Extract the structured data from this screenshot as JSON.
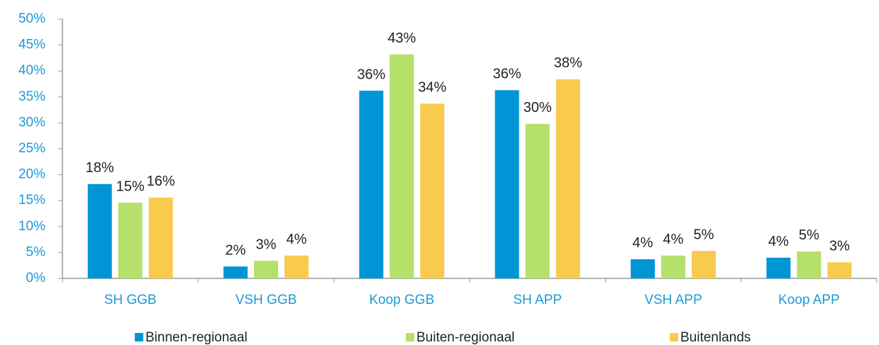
{
  "chart_data": {
    "type": "bar",
    "categories": [
      "SH GGB",
      "VSH GGB",
      "Koop GGB",
      "SH APP",
      "VSH APP",
      "Koop APP"
    ],
    "series": [
      {
        "name": "Binnen-regionaal",
        "color": "#0096d6",
        "values": [
          18.2,
          2.3,
          36.2,
          36.3,
          3.7,
          4.0
        ],
        "value_labels": [
          "18%",
          "2%",
          "36%",
          "36%",
          "4%",
          "4%"
        ]
      },
      {
        "name": "Buiten-regionaal",
        "color": "#b5e06a",
        "values": [
          14.6,
          3.4,
          43.2,
          29.8,
          4.4,
          5.2
        ],
        "value_labels": [
          "15%",
          "3%",
          "43%",
          "30%",
          "4%",
          "5%"
        ]
      },
      {
        "name": "Buitenlands",
        "color": "#f8cb4e",
        "values": [
          15.6,
          4.4,
          33.7,
          38.4,
          5.3,
          3.1
        ],
        "value_labels": [
          "16%",
          "4%",
          "34%",
          "38%",
          "5%",
          "3%"
        ]
      }
    ],
    "ylim": [
      0,
      50
    ],
    "yticks": [
      {
        "value": 0,
        "label": "0%"
      },
      {
        "value": 5,
        "label": "5%"
      },
      {
        "value": 10,
        "label": "10%"
      },
      {
        "value": 15,
        "label": "15%"
      },
      {
        "value": 20,
        "label": "20%"
      },
      {
        "value": 25,
        "label": "25%"
      },
      {
        "value": 30,
        "label": "30%"
      },
      {
        "value": 35,
        "label": "35%"
      },
      {
        "value": 40,
        "label": "40%"
      },
      {
        "value": 45,
        "label": "45%"
      },
      {
        "value": 50,
        "label": "50%"
      }
    ],
    "grid": false,
    "legend": "bottom"
  }
}
